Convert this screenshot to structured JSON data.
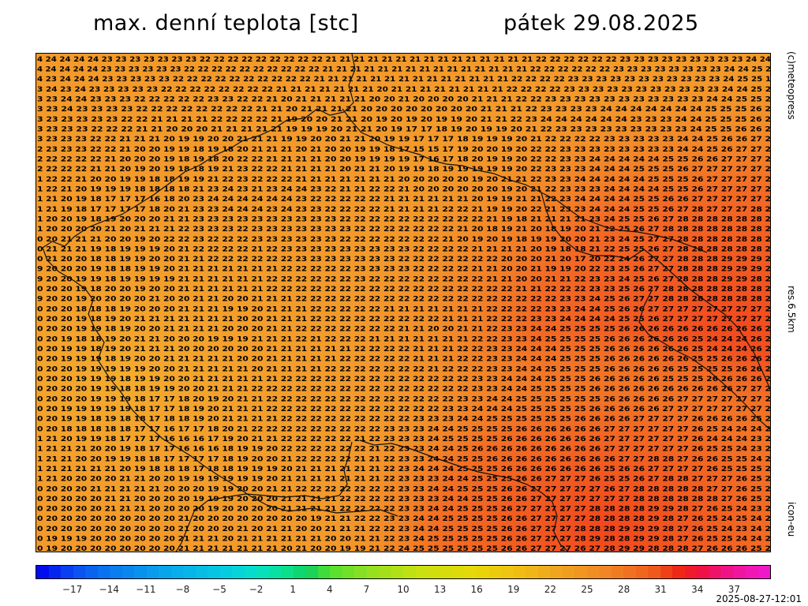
{
  "header": {
    "title": "max. denní teplota [stc]",
    "date": "pátek 29.08.2025"
  },
  "side_labels": {
    "copyright": "(c)meteopress",
    "resolution": "res.6.5km",
    "model": "icon-eu"
  },
  "timestamp": "2025-08-27-12:01",
  "legend": {
    "ticks": [
      "−17",
      "−14",
      "−11",
      "−8",
      "−5",
      "−2",
      "1",
      "4",
      "7",
      "10",
      "13",
      "16",
      "19",
      "22",
      "25",
      "28",
      "31",
      "34",
      "37"
    ],
    "min": -20,
    "max": 40
  },
  "map": {
    "grid_rows": [
      "4 24 24 24 24 23 23 23 23 23 23 23 22 22 22 22 22 22 22 22 22 21 21 21 21 21 21 21 21 21 21 21 21 21 21 21 22 22 22 22 22 22 23 23 23 23 23 23 23 23 23 24 24",
      "4 24 24 24 24 23 23 23 23 23 23 22 22 22 22 22 22 22 22 22 22 21 21 21 21 21 21 21 21 21 21 21 21 21 21 21 22 22 22 22 22 22 23 23 23 23 23 23 23 23 24 24 25 2",
      "4 23 24 24 24 23 23 23 23 23 22 22 22 22 22 22 22 22 22 22 21 21 21 21 21 21 21 21 21 21 21 21 21 21 22 22 22 22 23 23 23 23 23 23 23 23 23 23 23 24 25 25 1",
      "3 24 23 24 23 23 23 23 23 22 22 22 22 22 22 22 22 21 21 21 21 21 21 21 20 21 21 21 21 21 21 21 21 22 22 22 22 23 23 23 23 23 23 23 23 23 23 23 24 24 25 2",
      "3 23 24 24 23 23 23 22 22 22 22 22 23 23 22 22 21 20 21 21 21 21 21 20 20 21 20 20 20 20 21 21 21 22 22 23 23 23 23 23 23 23 23 23 23 23 24 24 25 25 2",
      "3 23 24 23 23 23 23 22 22 22 22 22 22 22 22 21 21 20 21 21 21 21 20 20 20 20 20 20 20 20 21 21 21 22 23 23 23 23 24 24 24 24 24 24 24 25 25 25 26 2",
      "3 23 23 23 23 23 22 22 21 21 21 21 22 22 22 22 21 19 20 20 21 21 20 19 20 19 20 19 19 20 21 21 22 23 24 24 24 24 24 24 23 23 23 24 24 25 25 25 26 2",
      "3 23 23 23 22 22 22 21 21 20 20 20 21 21 21 21 21 19 19 19 20 21 21 20 19 17 17 18 19 20 19 19 20 21 22 23 23 23 23 23 23 23 23 23 24 25 25 26 26 2",
      "3 23 23 23 22 22 21 21 21 20 19 19 20 20 21 21 21 19 19 20 20 21 21 20 19 19 17 17 17 18 19 19 19 20 21 22 22 22 22 23 23 23 23 23 24 24 25 26 26 27 2",
      "2 23 23 23 22 22 21 20 20 19 19 18 19 18 20 21 21 21 20 21 20 20 19 19 18 17 15 15 17 19 20 20 19 20 22 22 23 23 23 23 23 23 23 23 24 24 25 26 27 27 2",
      "2 22 22 22 22 21 20 20 20 19 18 19 18 20 22 22 21 21 21 21 20 20 19 19 19 19 17 16 17 18 20 19 19 20 22 22 23 23 24 24 24 24 24 25 25 26 26 27 27 27 2",
      "2 22 22 22 21 21 20 19 20 19 18 18 19 21 23 22 22 21 21 21 21 20 21 21 20 19 19 18 19 19 19 19 19 20 22 23 23 23 24 24 24 25 25 25 26 27 27 27 27 27 2",
      "1 22 22 21 20 20 19 19 18 18 19 19 21 22 23 22 22 22 21 21 21 21 21 21 21 20 20 20 20 20 19 20 21 21 22 23 23 24 24 24 24 24 25 25 25 26 27 27 27 27 2",
      "1 22 21 20 19 19 19 18 18 18 18 21 23 24 23 21 23 24 24 23 22 21 21 22 22 21 20 20 20 20 20 20 19 20 21 22 23 23 23 24 24 24 24 25 25 26 27 27 27 27 2",
      "1 21 20 19 18 17 17 17 16 18 20 23 24 24 24 24 24 24 23 22 22 22 22 22 21 21 21 21 21 21 20 19 19 21 21 22 23 24 24 24 24 25 25 26 26 27 27 27 27 27 2",
      "1 21 19 18 17 17 17 17 18 20 21 23 23 24 24 24 23 24 23 23 22 22 22 22 21 21 21 21 22 22 21 19 19 20 22 21 23 23 24 24 24 25 25 26 27 28 27 27 27 28 2",
      "1 20 20 19 18 19 20 20 20 21 21 23 23 23 23 23 23 23 23 23 23 22 22 22 22 22 22 22 22 22 22 21 19 18 21 21 21 21 23 24 25 25 26 27 28 28 28 28 28 28 2",
      "1 20 20 20 20 21 20 21 21 21 22 23 23 23 22 23 23 23 23 23 23 23 22 22 22 22 22 22 22 21 20 18 19 21 20 18 19 20 21 22 25 26 27 28 28 28 28 28 28 28 2",
      "0 20 21 21 21 20 20 19 20 22 22 23 22 22 22 23 23 23 23 23 23 22 22 22 22 22 22 22 21 20 19 20 19 18 19 19 20 20 21 23 24 25 27 27 28 28 28 28 28 28 2",
      "0 21 21 21 19 18 19 19 19 20 21 22 22 22 22 21 22 23 23 23 23 23 23 23 23 23 22 22 22 22 21 21 21 21 20 19 18 18 21 22 25 25 26 27 28 28 28 28 28 28 2",
      "0 21 20 20 18 18 19 19 20 20 21 21 22 22 22 22 22 22 23 23 23 23 23 23 23 22 22 22 22 22 22 22 20 20 20 21 20 17 20 22 24 26 27 27 28 28 28 29 29 29 2",
      "9 20 20 20 19 18 18 19 19 20 21 21 21 21 21 21 21 22 22 22 22 22 23 23 23 23 22 22 22 22 21 21 20 20 21 19 19 20 22 23 25 26 27 27 28 28 28 29 29 29 2",
      "9 20 20 19 19 18 19 19 19 19 21 21 21 21 21 21 22 22 22 22 22 22 23 22 22 22 22 22 22 22 22 21 21 20 20 21 21 22 23 23 24 25 26 27 28 28 28 29 29 28 2",
      "0 20 20 19 18 20 20 19 20 20 21 21 21 21 21 21 22 22 22 22 22 22 22 22 22 22 22 22 22 22 22 22 22 21 21 22 22 22 23 23 25 26 27 28 28 28 28 28 28 28 2",
      "9 20 20 19 20 20 20 20 21 20 20 21 21 20 20 21 21 21 22 22 22 22 22 22 22 22 22 22 22 22 22 22 22 22 22 22 23 23 24 25 26 27 27 28 28 28 28 28 28 28 2",
      "0 20 20 18 18 18 19 20 20 20 21 21 21 19 19 20 21 21 21 22 22 22 22 22 21 21 21 21 21 21 21 22 22 22 22 23 23 24 24 25 26 26 27 27 27 27 27 27 27 27 2",
      "0 20 20 19 18 19 20 21 21 21 21 21 21 21 20 20 21 21 21 22 22 22 22 22 22 22 22 22 21 21 21 22 22 22 23 23 24 24 24 24 25 25 26 27 27 27 27 27 27 27 2",
      "0 20 20 19 19 18 19 20 20 21 21 21 21 20 20 20 21 21 22 22 22 22 22 22 22 21 21 20 20 21 21 22 23 23 24 24 25 25 25 25 26 26 26 26 26 26 26 26 26 26 2",
      "0 20 19 18 18 19 20 21 21 20 20 20 19 19 19 21 21 21 22 21 22 22 22 21 21 21 21 21 21 21 22 22 23 23 24 25 25 25 25 26 26 26 26 26 26 25 24 24 24 26 2",
      "0 20 19 19 18 19 20 21 21 21 20 20 20 20 20 20 21 21 21 21 21 21 22 22 22 22 21 21 21 22 22 23 23 24 24 24 25 25 25 26 26 26 26 26 26 25 24 24 24 26 2",
      "0 20 19 19 19 18 19 20 20 21 21 21 21 21 20 20 21 21 21 21 21 22 22 22 22 22 21 21 21 22 22 23 23 24 24 24 25 25 25 26 26 26 26 26 26 25 25 26 26 26 2",
      "0 20 20 19 19 19 19 19 20 20 21 21 21 21 21 20 21 21 21 21 22 22 22 22 22 22 22 21 22 22 22 23 23 24 24 25 25 25 25 26 26 26 26 26 25 25 25 25 26 26 2",
      "0 20 20 19 19 19 18 19 19 20 20 21 21 21 21 21 21 22 22 22 22 22 22 22 22 22 22 22 22 22 23 23 24 24 24 25 25 25 26 26 26 26 26 25 25 25 26 26 26 26 2",
      "0 20 20 20 19 19 18 18 19 19 20 20 21 21 21 22 22 22 22 22 22 22 22 22 22 22 22 22 22 22 23 23 24 24 25 25 25 25 26 26 26 26 26 26 26 26 26 26 27 27 2",
      "0 20 20 20 19 19 19 18 17 17 18 20 19 20 21 21 22 22 22 22 22 22 22 22 22 22 22 22 22 23 23 24 24 25 25 25 25 25 25 26 26 26 26 26 27 27 27 27 27 27 2",
      "0 20 19 19 19 19 19 18 17 17 18 19 20 21 21 21 22 22 22 22 22 22 22 22 22 22 22 22 23 23 24 24 24 25 25 25 25 25 26 26 26 26 26 27 27 27 27 27 27 27 2",
      "0 20 19 19 18 19 18 18 17 18 18 19 20 21 21 21 21 22 22 22 22 22 22 22 22 22 23 23 23 24 24 25 25 25 25 25 25 26 26 26 26 27 27 27 27 26 26 26 26 25 2",
      "0 20 18 18 18 18 18 17 17 16 17 17 18 20 21 22 22 22 22 22 22 22 22 22 23 23 23 24 24 25 25 25 25 26 26 26 26 26 26 27 27 27 27 27 27 26 25 24 24 24 2",
      "1 21 20 19 19 18 17 17 17 16 16 16 17 19 20 21 21 22 22 22 22 22 21 22 23 23 23 24 25 25 25 25 26 26 26 26 26 26 26 27 27 27 27 27 27 26 24 24 24 23 2",
      "1 21 21 21 20 20 19 18 17 17 16 16 16 18 19 19 20 22 22 22 22 22 22 21 22 23 23 24 24 25 26 26 26 26 26 26 26 26 26 27 27 27 27 27 27 26 25 25 24 23 2",
      "1 21 21 20 20 19 19 18 18 17 17 17 17 18 19 20 20 21 22 22 22 22 21 21 22 23 23 24 24 25 25 26 26 26 26 26 26 26 26 26 27 27 28 28 27 26 26 25 25 24 2",
      "1 21 21 21 21 21 20 19 18 18 18 17 18 18 19 19 19 20 21 21 21 21 21 21 22 23 24 24 24 25 25 25 26 26 26 26 26 26 26 25 26 26 27 27 27 27 26 25 25 25 2",
      "1 21 20 20 20 20 21 21 20 20 19 19 19 19 19 19 20 21 21 21 21 21 21 21 22 23 23 23 24 24 25 25 25 26 26 27 27 27 26 25 25 26 27 28 28 27 27 27 26 25 2",
      "0 20 20 20 21 21 21 21 21 20 20 20 19 19 20 20 21 21 22 22 22 22 22 22 22 23 23 24 24 25 25 25 26 26 27 27 27 27 27 26 27 28 28 28 28 28 27 27 26 25 2",
      "0 20 20 20 20 21 21 20 20 20 20 19 19 19 20 20 20 21 21 21 21 22 22 22 22 23 23 23 24 24 25 25 26 26 27 27 27 27 27 27 27 28 28 28 28 28 28 27 26 25 2",
      "0 20 20 20 20 21 21 21 20 20 20 20 19 20 20 20 20 21 21 21 21 22 22 22 22 23 23 24 24 25 25 25 26 27 27 27 27 27 28 28 28 28 29 29 28 27 26 25 24 23 2",
      "0 20 20 20 20 20 20 20 20 20 21 20 20 20 20 20 20 20 20 19 21 21 22 22 23 23 24 24 25 25 25 25 26 26 27 27 27 27 28 28 28 28 29 28 27 26 25 24 25 24 2",
      "0 20 20 20 20 20 20 20 20 20 21 20 20 20 21 20 21 21 20 20 21 21 21 22 22 23 24 24 25 25 25 25 26 26 27 27 27 28 28 28 29 29 29 28 27 26 25 24 23 24 2",
      "0 19 19 19 20 20 20 20 20 20 21 21 21 20 21 21 21 21 21 21 20 20 21 21 22 23 24 25 25 25 25 25 26 26 27 27 27 28 29 28 28 29 29 28 27 26 25 25 24 24 2",
      "0 19 20 20 20 20 20 20 20 20 21 21 21 21 21 21 21 20 21 20 20 19 19 21 22 24 25 25 25 25 25 25 26 26 27 27 27 26 27 28 29 29 28 28 28 27 26 26 26 25 2"
    ]
  }
}
